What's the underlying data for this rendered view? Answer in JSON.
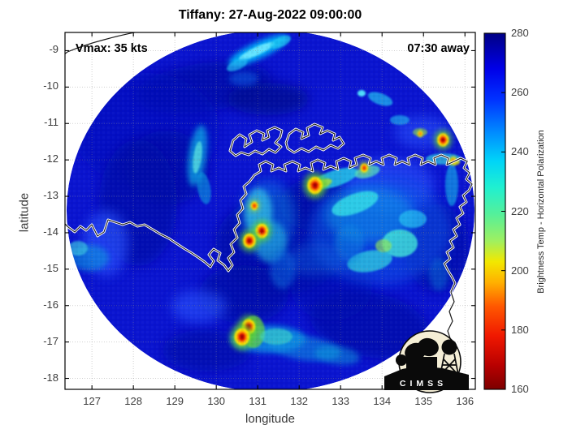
{
  "header": {
    "title": "Tiffany: 27-Aug-2022 09:00:00"
  },
  "overlays": {
    "vmax": "Vmax: 35 kts",
    "away": "07:30 away"
  },
  "axes": {
    "x_label": "longitude",
    "y_label": "latitude"
  },
  "colorbar_panel": {
    "label": "Brightness Temp - Horizontal Polarization"
  },
  "logo": {
    "text": "CIMSS"
  },
  "chart_data": {
    "type": "heatmap",
    "title": "Tiffany: 27-Aug-2022 09:00:00",
    "xlabel": "longitude",
    "ylabel": "latitude",
    "xlim": [
      126.35,
      136.25
    ],
    "ylim": [
      -8.5,
      -18.3
    ],
    "x_ticks": [
      127,
      128,
      129,
      130,
      131,
      132,
      133,
      134,
      135,
      136
    ],
    "y_ticks": [
      -9,
      -10,
      -11,
      -12,
      -13,
      -14,
      -15,
      -16,
      -17,
      -18
    ],
    "grid": true,
    "legend_position": "right-colorbar",
    "storm": {
      "name": "Tiffany",
      "datetime": "27-Aug-2022 09:00:00",
      "vmax_kts": 35,
      "overpass_offset": "07:30 away"
    },
    "colorbar": {
      "label": "Brightness Temp - Horizontal Polarization",
      "min": 160,
      "max": 280,
      "ticks": [
        280,
        260,
        240,
        220,
        200,
        180,
        160
      ],
      "stops": [
        {
          "v": 280,
          "c": "#000084"
        },
        {
          "v": 268,
          "c": "#0000e8"
        },
        {
          "v": 258,
          "c": "#0030ff"
        },
        {
          "v": 246,
          "c": "#0090ff"
        },
        {
          "v": 237,
          "c": "#00d4f8"
        },
        {
          "v": 228,
          "c": "#20f0d0"
        },
        {
          "v": 219,
          "c": "#55f09a"
        },
        {
          "v": 210,
          "c": "#9ff060"
        },
        {
          "v": 203,
          "c": "#f2e800"
        },
        {
          "v": 196,
          "c": "#ffb000"
        },
        {
          "v": 188,
          "c": "#ff5800"
        },
        {
          "v": 178,
          "c": "#f01800"
        },
        {
          "v": 168,
          "c": "#b80000"
        },
        {
          "v": 160,
          "c": "#7d0000"
        }
      ]
    },
    "swath": {
      "center_lon": 131.31,
      "center_lat": -13.39,
      "radius_lon_deg": 4.92,
      "radius_lat_deg": 4.96
    },
    "hotspots": [
      {
        "lon": 132.38,
        "lat": -12.7,
        "r": 5.5,
        "strength": "strong"
      },
      {
        "lon": 133.57,
        "lat": -12.22,
        "r": 3.2,
        "strength": "medium"
      },
      {
        "lon": 135.47,
        "lat": -11.45,
        "r": 4.2,
        "strength": "strong"
      },
      {
        "lon": 134.92,
        "lat": -11.28,
        "r": 2.2,
        "strength": "weak"
      },
      {
        "lon": 130.92,
        "lat": -13.26,
        "r": 3.0,
        "strength": "medium"
      },
      {
        "lon": 131.1,
        "lat": -13.95,
        "r": 4.6,
        "strength": "strong"
      },
      {
        "lon": 130.8,
        "lat": -14.22,
        "r": 4.6,
        "strength": "strong"
      },
      {
        "lon": 135.72,
        "lat": -12.02,
        "r": 2.6,
        "strength": "weak"
      },
      {
        "lon": 130.78,
        "lat": -16.58,
        "r": 4.8,
        "strength": "strong"
      },
      {
        "lon": 130.62,
        "lat": -16.86,
        "r": 5.5,
        "strength": "strong"
      }
    ]
  }
}
